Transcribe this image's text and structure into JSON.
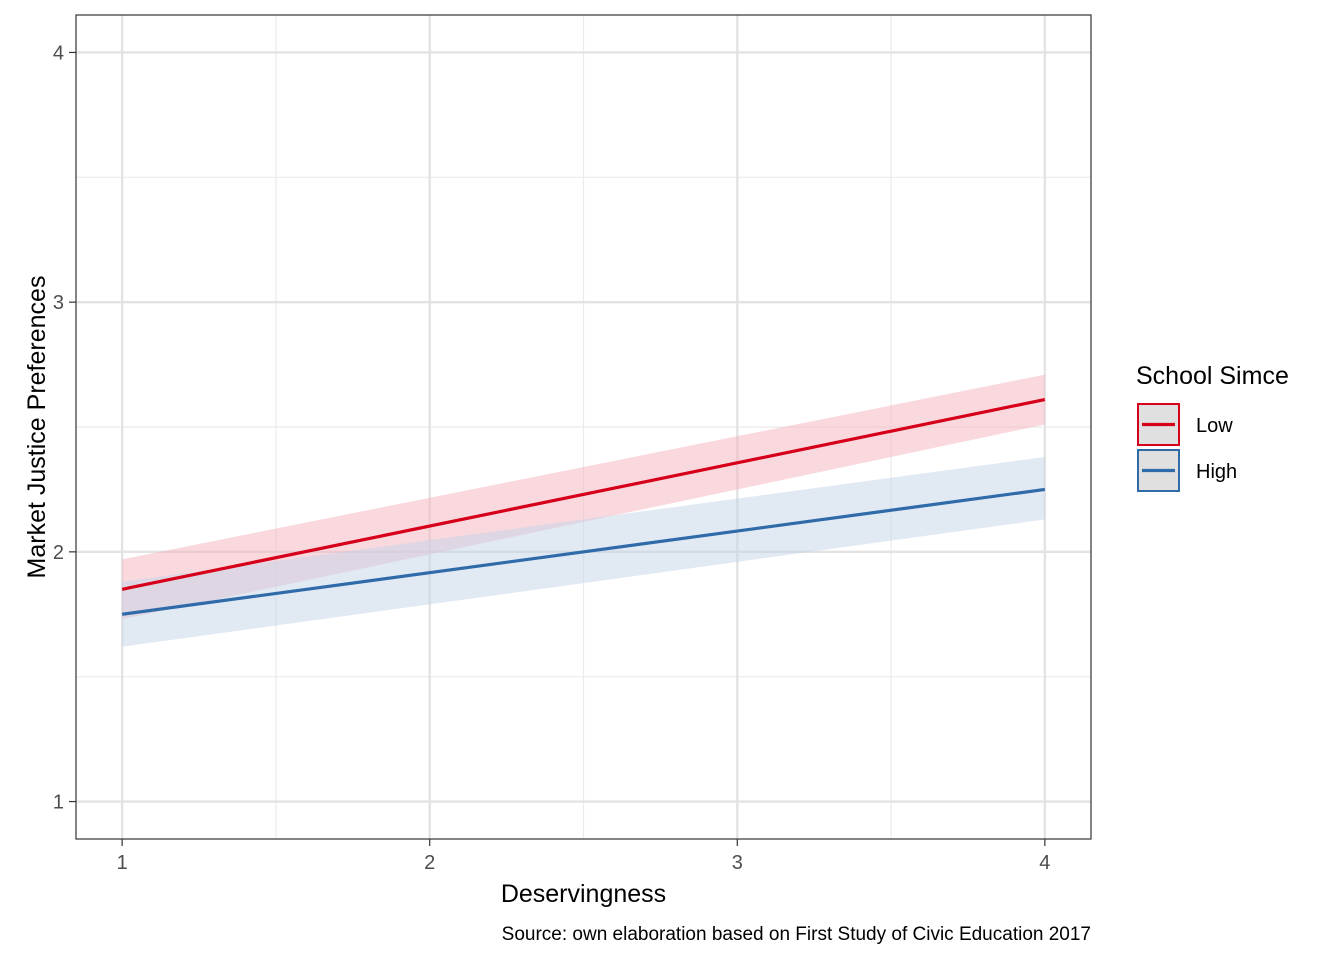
{
  "chart_data": {
    "type": "line",
    "title": "",
    "xlabel": "Deservingness",
    "ylabel": "Market Justice Preferences",
    "caption": "Source: own elaboration based on First Study of Civic Education 2017",
    "x_ticks": [
      "1",
      "2",
      "3",
      "4"
    ],
    "y_ticks": [
      "1",
      "2",
      "3",
      "4"
    ],
    "xlim": [
      0.85,
      4.15
    ],
    "ylim": [
      0.85,
      4.15
    ],
    "grid": true,
    "legend": {
      "title": "School Simce",
      "position": "right",
      "entries": [
        "Low",
        "High"
      ]
    },
    "series": [
      {
        "name": "Low",
        "color": "#d7001a",
        "fill": "#f4b3bd",
        "x": [
          1,
          4
        ],
        "y": [
          1.85,
          2.61
        ],
        "ci_low": [
          1.73,
          2.51
        ],
        "ci_high": [
          1.97,
          2.71
        ]
      },
      {
        "name": "High",
        "color": "#2f6aa9",
        "fill": "#c4d3e7",
        "x": [
          1,
          4
        ],
        "y": [
          1.75,
          2.25
        ],
        "ci_low": [
          1.62,
          2.13
        ],
        "ci_high": [
          1.88,
          2.38
        ]
      }
    ]
  }
}
